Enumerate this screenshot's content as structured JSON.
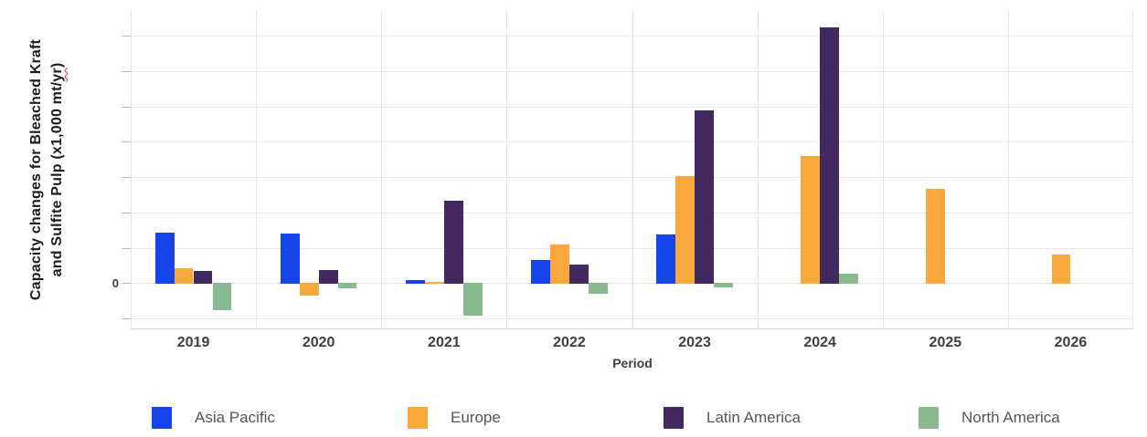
{
  "chart_data": {
    "type": "bar",
    "title": "",
    "categories": [
      "2019",
      "2020",
      "2021",
      "2022",
      "2023",
      "2024",
      "2025",
      "2026"
    ],
    "series": [
      {
        "name": "Asia Pacific",
        "color": "#1545e8",
        "values": [
          720,
          705,
          40,
          330,
          690,
          0,
          0,
          0
        ]
      },
      {
        "name": "Europe",
        "color": "#f8a83c",
        "values": [
          215,
          -175,
          15,
          550,
          1510,
          1800,
          1330,
          400
        ]
      },
      {
        "name": "Latin America",
        "color": "#422a60",
        "values": [
          170,
          180,
          1165,
          260,
          2440,
          3620,
          0,
          0
        ]
      },
      {
        "name": "North America",
        "color": "#8aba90",
        "values": [
          -380,
          -75,
          -455,
          -150,
          -60,
          135,
          0,
          0
        ]
      }
    ],
    "xlabel": "Period",
    "ylabel": "Capacity changes for Bleached Kraft and Sulfite Pulp (x1,000 mt/yr)",
    "ylabel_line1": "Capacity changes for Bleached Kraft",
    "ylabel_line2_parts": {
      "pre": "and Sulfite Pulp (x1,000 mt/",
      "squiggle_word": "yr",
      "post": ")"
    },
    "y_zero_label": "0",
    "y_gridline_step": 500,
    "ylim": [
      -640,
      3850
    ],
    "y_values_estimated_from_gridlines": true,
    "grid": true,
    "legend_position": "bottom"
  }
}
